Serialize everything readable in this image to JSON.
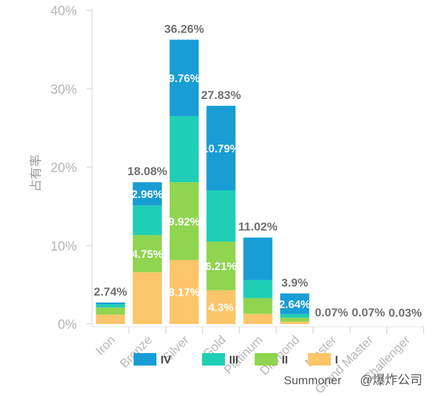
{
  "chart_data": {
    "type": "bar",
    "stacked": true,
    "ylabel": "占有率",
    "ylim": [
      0,
      40
    ],
    "yticks": [
      "0%",
      "10%",
      "20%",
      "30%",
      "40%"
    ],
    "grid": false,
    "categories": [
      "Iron",
      "Bronze",
      "Silver",
      "Gold",
      "Platinum",
      "Diamond",
      "Master",
      "Grand Master",
      "Challenger"
    ],
    "totals": [
      2.74,
      18.08,
      36.26,
      27.83,
      11.02,
      3.9,
      0.07,
      0.07,
      0.03
    ],
    "total_labels": [
      "2.74%",
      "18.08%",
      "36.26%",
      "27.83%",
      "11.02%",
      "3.9%",
      "0.07%",
      "0.07%",
      "0.03%"
    ],
    "series": [
      {
        "name": "I",
        "color": "#FDC56A",
        "values": [
          1.2,
          6.6,
          8.17,
          4.3,
          1.3,
          0.3,
          0,
          0,
          0
        ]
      },
      {
        "name": "II",
        "color": "#8FD54F",
        "values": [
          0.9,
          4.75,
          9.92,
          6.21,
          2.0,
          0.5,
          0,
          0,
          0
        ]
      },
      {
        "name": "III",
        "color": "#1FCFB5",
        "values": [
          0.4,
          3.77,
          8.41,
          6.53,
          2.3,
          0.46,
          0,
          0,
          0
        ]
      },
      {
        "name": "IV",
        "color": "#189DD5",
        "values": [
          0.24,
          2.96,
          9.76,
          10.79,
          5.42,
          2.64,
          0,
          0,
          0
        ]
      }
    ],
    "segment_labels": [
      {
        "category": "Bronze",
        "series": "IV",
        "text": "2.96%"
      },
      {
        "category": "Bronze",
        "series": "II",
        "text": "4.75%"
      },
      {
        "category": "Silver",
        "series": "IV",
        "text": "9.76%"
      },
      {
        "category": "Silver",
        "series": "II",
        "text": "9.92%"
      },
      {
        "category": "Silver",
        "series": "I",
        "text": "8.17%"
      },
      {
        "category": "Gold",
        "series": "IV",
        "text": "10.79%"
      },
      {
        "category": "Gold",
        "series": "II",
        "text": "6.21%"
      },
      {
        "category": "Gold",
        "series": "I",
        "text": "4.3%"
      },
      {
        "category": "Diamond",
        "series": "IV",
        "text": "2.64%"
      }
    ],
    "legend": {
      "position": "bottom",
      "order": [
        "IV",
        "III",
        "II",
        "I"
      ]
    },
    "extra_text": "Summoner"
  },
  "watermark": "@爆炸公司"
}
